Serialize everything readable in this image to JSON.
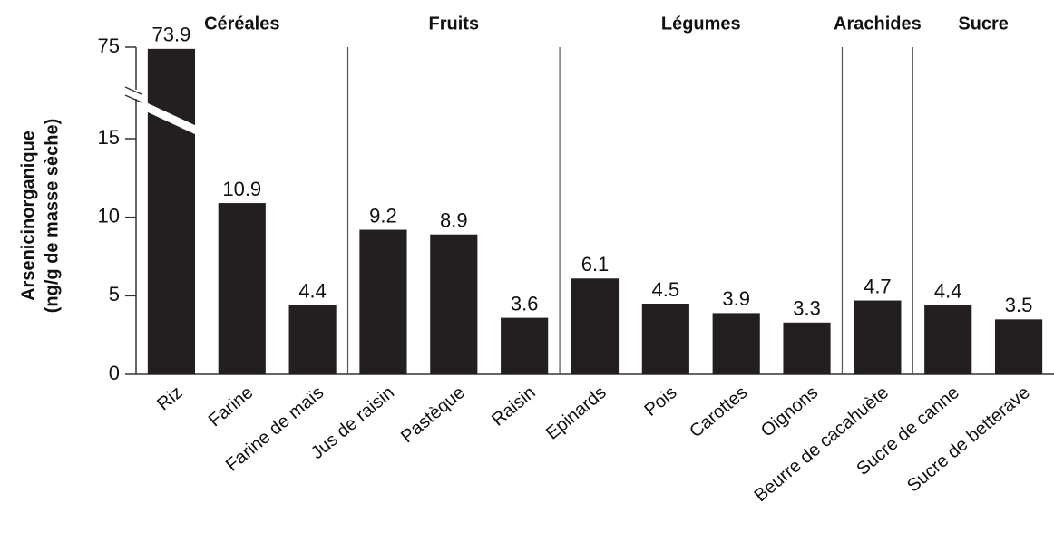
{
  "chart_data": {
    "type": "bar",
    "y_label": [
      "Arsenicinorganique",
      "(ng/g de masse sèche)"
    ],
    "categories": [
      "Riz",
      "Farine",
      "Farine de maïs",
      "Jus de raisin",
      "Pastèque",
      "Raisin",
      "Epinards",
      "Pois",
      "Carottes",
      "Oignons",
      "Beurre de cacahuète",
      "Sucre de canne",
      "Sucre de betterave"
    ],
    "values": [
      73.9,
      10.9,
      4.4,
      9.2,
      8.9,
      3.6,
      6.1,
      4.5,
      3.9,
      3.3,
      4.7,
      4.4,
      3.5
    ],
    "value_labels": [
      "73.9",
      "10.9",
      "4.4",
      "9.2",
      "8.9",
      "3.6",
      "6.1",
      "4.5",
      "3.9",
      "3.3",
      "4.7",
      "4.4",
      "3.5"
    ],
    "groups": [
      {
        "label": "Céréales",
        "categories": [
          "Riz",
          "Farine",
          "Farine de maïs"
        ]
      },
      {
        "label": "Fruits",
        "categories": [
          "Jus de raisin",
          "Pastèque",
          "Raisin"
        ]
      },
      {
        "label": "Légumes",
        "categories": [
          "Epinards",
          "Pois",
          "Carottes",
          "Oignons"
        ]
      },
      {
        "label": "Arachides",
        "categories": [
          "Beurre de cacahuète"
        ]
      },
      {
        "label": "Sucre",
        "categories": [
          "Sucre de canne",
          "Sucre de betterave"
        ]
      }
    ],
    "color": "#231f20",
    "ylim": [
      0,
      75
    ],
    "yticks": [
      0,
      5,
      10,
      15,
      75
    ],
    "axis_break": true,
    "grid": false
  }
}
